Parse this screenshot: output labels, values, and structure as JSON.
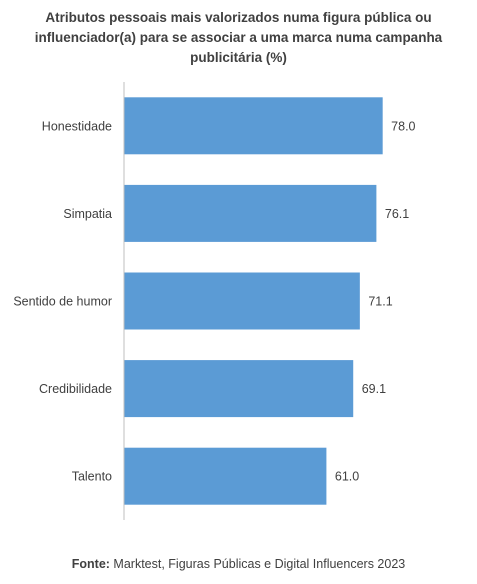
{
  "chart_data": {
    "type": "bar",
    "orientation": "horizontal",
    "title": "Atributos pessoais mais valorizados numa figura pública ou influenciador(a) para se associar a uma marca numa campanha publicitária (%)",
    "categories": [
      "Honestidade",
      "Simpatia",
      "Sentido de humor",
      "Credibilidade",
      "Talento"
    ],
    "values": [
      78.0,
      76.1,
      71.1,
      69.1,
      61.0
    ],
    "value_labels": [
      "78.0",
      "76.1",
      "71.1",
      "69.1",
      "61.0"
    ],
    "xlim": [
      0,
      80
    ],
    "grid": false,
    "legend": "none",
    "colors": {
      "bar": "#5b9bd5",
      "axis": "#bfbfbf",
      "text": "#404040"
    }
  },
  "source": {
    "label": "Fonte:",
    "text": " Marktest, Figuras Públicas e Digital Influencers 2023"
  }
}
